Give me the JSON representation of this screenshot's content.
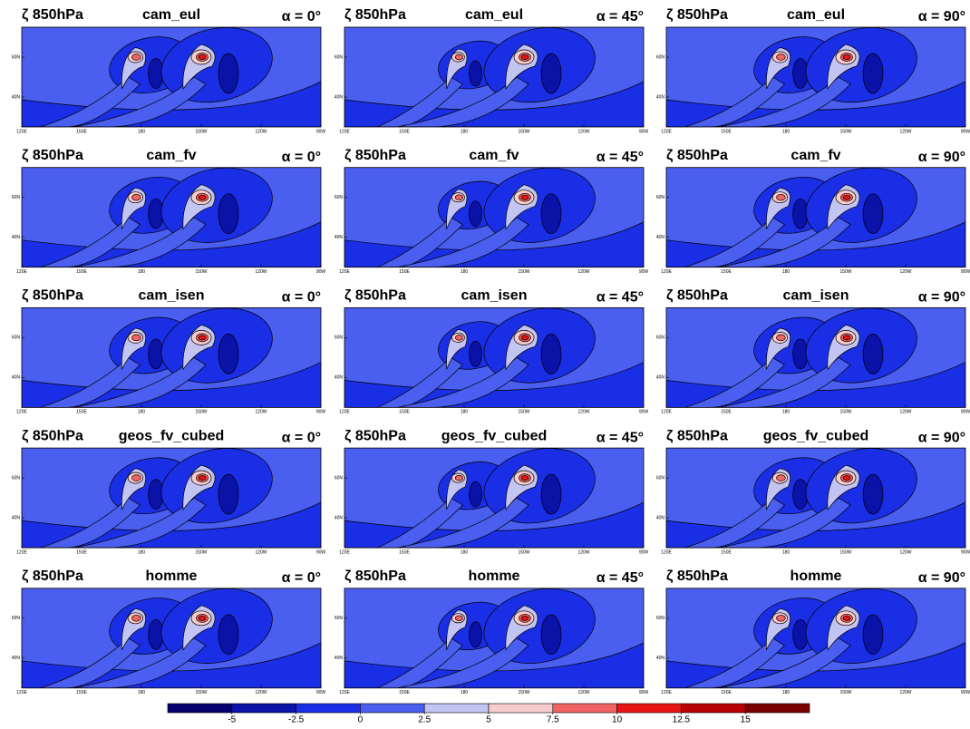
{
  "chart_data": {
    "type": "contour",
    "panels": [
      {
        "variable": "ζ 850hPa",
        "model": "cam_eul",
        "angle": "α = 0°"
      },
      {
        "variable": "ζ 850hPa",
        "model": "cam_eul",
        "angle": "α = 45°"
      },
      {
        "variable": "ζ 850hPa",
        "model": "cam_eul",
        "angle": "α = 90°"
      },
      {
        "variable": "ζ 850hPa",
        "model": "cam_fv",
        "angle": "α = 0°"
      },
      {
        "variable": "ζ 850hPa",
        "model": "cam_fv",
        "angle": "α = 45°"
      },
      {
        "variable": "ζ 850hPa",
        "model": "cam_fv",
        "angle": "α = 90°"
      },
      {
        "variable": "ζ 850hPa",
        "model": "cam_isen",
        "angle": "α = 0°"
      },
      {
        "variable": "ζ 850hPa",
        "model": "cam_isen",
        "angle": "α = 45°"
      },
      {
        "variable": "ζ 850hPa",
        "model": "cam_isen",
        "angle": "α = 90°"
      },
      {
        "variable": "ζ 850hPa",
        "model": "geos_fv_cubed",
        "angle": "α = 0°"
      },
      {
        "variable": "ζ 850hPa",
        "model": "geos_fv_cubed",
        "angle": "α = 45°"
      },
      {
        "variable": "ζ 850hPa",
        "model": "geos_fv_cubed",
        "angle": "α = 90°"
      },
      {
        "variable": "ζ 850hPa",
        "model": "homme",
        "angle": "α = 0°"
      },
      {
        "variable": "ζ 850hPa",
        "model": "homme",
        "angle": "α = 45°"
      },
      {
        "variable": "ζ 850hPa",
        "model": "homme",
        "angle": "α = 90°"
      }
    ],
    "map_xticks": [
      "120E",
      "150E",
      "180",
      "150W",
      "120W",
      "90W"
    ],
    "map_yticks": [
      "60N",
      "40N"
    ],
    "colorbar": {
      "lim": [
        -7.5,
        17.5
      ],
      "ticks": [
        -5,
        -2.5,
        0,
        2.5,
        5,
        7.5,
        10,
        12.5,
        15
      ],
      "colors": [
        "#06006e",
        "#0a12a8",
        "#1a2ee6",
        "#4a5ef0",
        "#c2c4f2",
        "#f8cccc",
        "#f06464",
        "#e81414",
        "#b80000",
        "#7a0000"
      ]
    }
  }
}
